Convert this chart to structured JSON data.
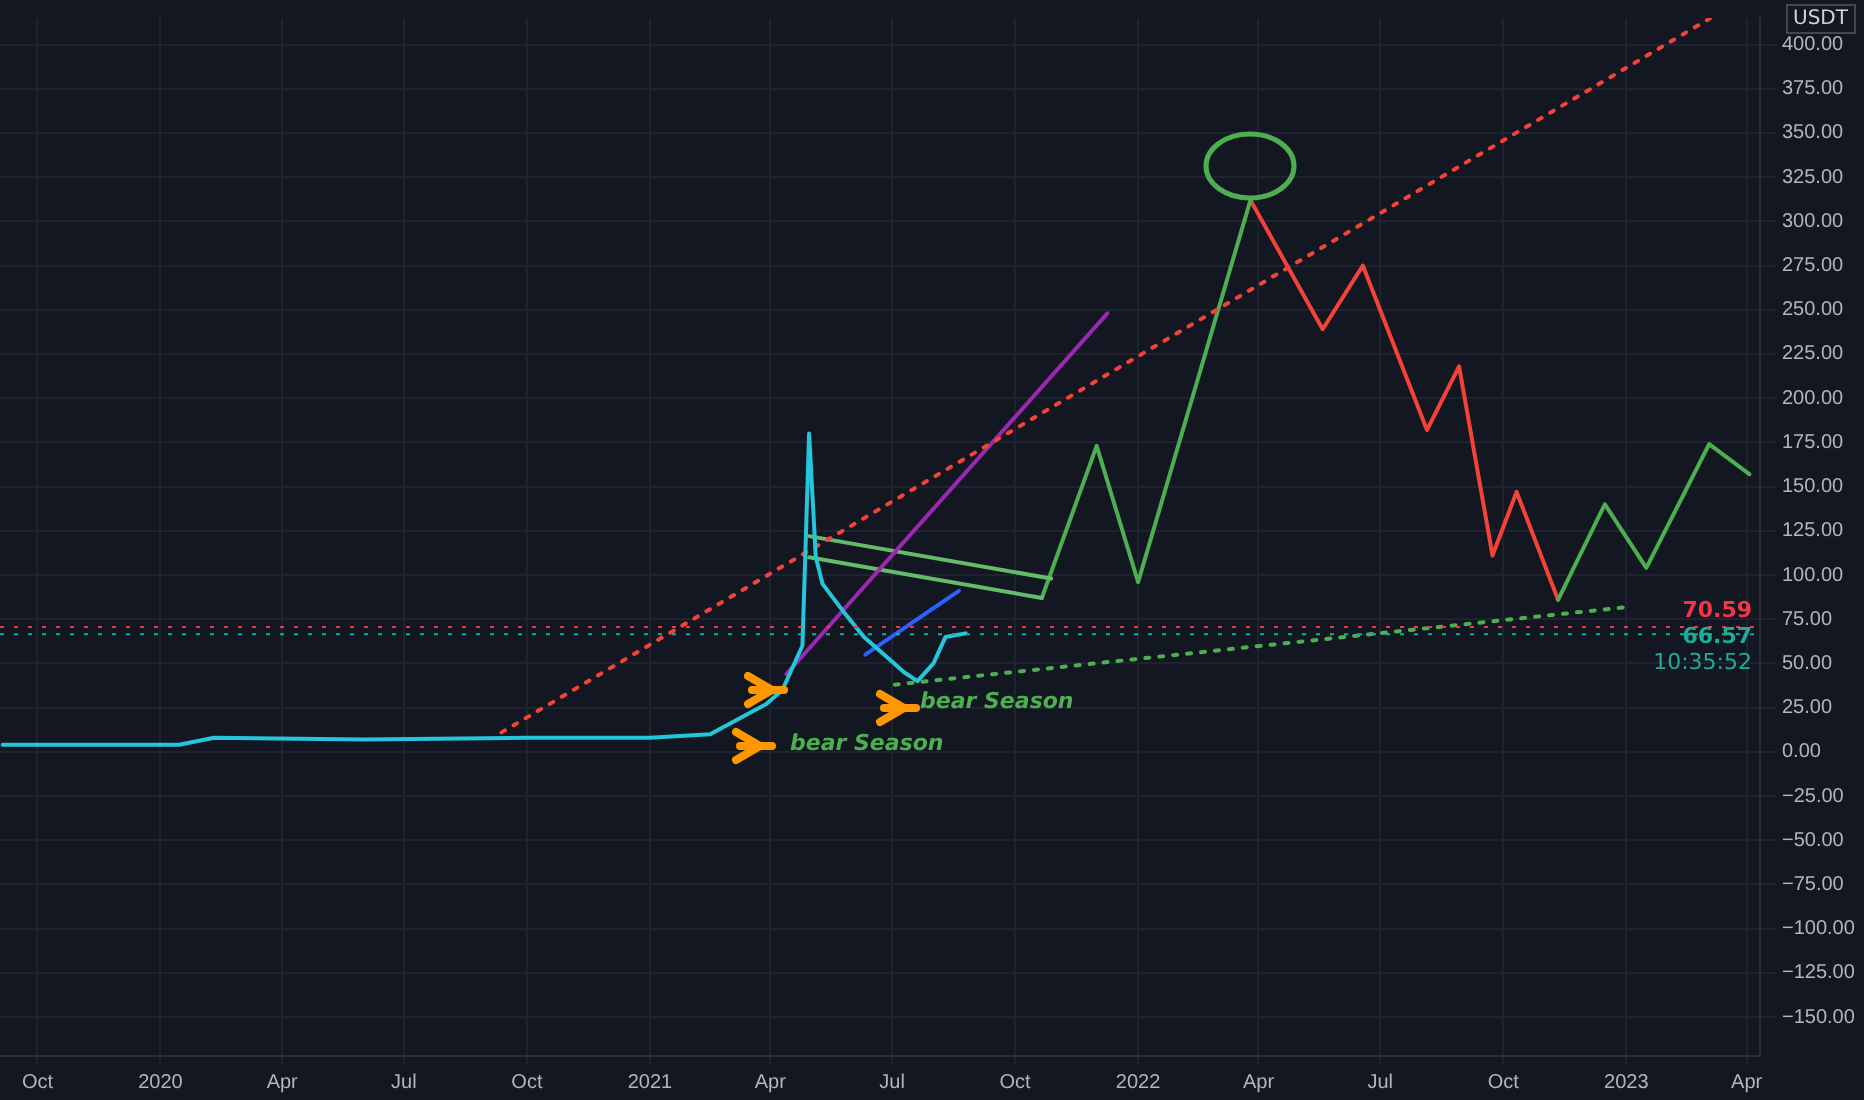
{
  "chart_data": {
    "type": "line",
    "ylabel": "USDT",
    "series": [
      {
        "color": "#26c6da",
        "x": [
          "2019-09-05",
          "2020-01-15",
          "2020-02-10",
          "2020-06-01",
          "2020-10-01",
          "2021-01-01",
          "2021-02-15",
          "2021-03-29",
          "2021-04-10",
          "2021-04-25",
          "2021-04-30",
          "2021-05-05",
          "2021-05-10",
          "2021-05-25",
          "2021-06-10",
          "2021-06-25",
          "2021-07-10",
          "2021-07-20",
          "2021-08-01",
          "2021-08-10",
          "2021-08-25"
        ],
        "values": [
          4,
          4,
          8,
          7,
          8,
          8,
          10,
          27,
          35,
          60,
          180,
          110,
          95,
          80,
          65,
          55,
          45,
          40,
          50,
          65,
          67
        ]
      },
      {
        "color": "#f44336",
        "line_style": "dotted",
        "x": [
          "2020-09-12",
          "2023-03-05"
        ],
        "values": [
          11,
          415
        ]
      },
      {
        "color": "#4caf50",
        "line_style": "dotted",
        "x": [
          "2021-07-03",
          "2023-01-03"
        ],
        "values": [
          38,
          82
        ]
      },
      {
        "color": "#9c27b0",
        "x": [
          "2021-04-13",
          "2021-12-09"
        ],
        "values": [
          44,
          248
        ]
      },
      {
        "color": "#2962ff",
        "x": [
          "2021-06-11",
          "2021-08-20"
        ],
        "values": [
          55,
          91
        ]
      },
      {
        "color": "#66bb6a",
        "x": [
          "2021-04-30",
          "2021-10-28"
        ],
        "values": [
          122,
          98
        ]
      },
      {
        "color": "#66bb6a",
        "x": [
          "2021-04-30",
          "2021-10-21"
        ],
        "values": [
          110,
          87
        ]
      },
      {
        "color": "#4caf50",
        "x": [
          "2021-10-21",
          "2021-12-01",
          "2022-01-01",
          "2022-03-26"
        ],
        "values": [
          87,
          173,
          96,
          312
        ]
      },
      {
        "color": "#4caf50",
        "x": [
          "2022-11-11",
          "2022-12-16",
          "2023-01-16",
          "2023-03-04",
          "2023-04-03"
        ],
        "values": [
          86,
          140,
          104,
          174,
          157
        ]
      },
      {
        "color": "#f44336",
        "x": [
          "2022-03-26",
          "2022-05-19",
          "2022-06-18",
          "2022-08-05",
          "2022-08-29",
          "2022-09-23",
          "2022-10-11",
          "2022-11-11"
        ],
        "values": [
          312,
          239,
          275,
          182,
          218,
          111,
          147,
          86
        ]
      }
    ],
    "xlim": [
      "2019-09-03",
      "2023-04-11"
    ],
    "xticks": [
      {
        "value": "2019-10-01",
        "label": "Oct"
      },
      {
        "value": "2020-01-01",
        "label": "2020"
      },
      {
        "value": "2020-04-01",
        "label": "Apr"
      },
      {
        "value": "2020-07-01",
        "label": "Jul"
      },
      {
        "value": "2020-10-01",
        "label": "Oct"
      },
      {
        "value": "2021-01-01",
        "label": "2021"
      },
      {
        "value": "2021-04-01",
        "label": "Apr"
      },
      {
        "value": "2021-07-01",
        "label": "Jul"
      },
      {
        "value": "2021-10-01",
        "label": "Oct"
      },
      {
        "value": "2022-01-01",
        "label": "2022"
      },
      {
        "value": "2022-04-01",
        "label": "Apr"
      },
      {
        "value": "2022-07-01",
        "label": "Jul"
      },
      {
        "value": "2022-10-01",
        "label": "Oct"
      },
      {
        "value": "2023-01-01",
        "label": "2023"
      },
      {
        "value": "2023-04-01",
        "label": "Apr"
      }
    ],
    "ylim": [
      -172,
      415
    ],
    "yticks": [
      {
        "value": -150,
        "label": "−150.00"
      },
      {
        "value": -125,
        "label": "−125.00"
      },
      {
        "value": -100,
        "label": "−100.00"
      },
      {
        "value": -75,
        "label": "−75.00"
      },
      {
        "value": -50,
        "label": "−50.00"
      },
      {
        "value": -25,
        "label": "−25.00"
      },
      {
        "value": 0,
        "label": "0.00"
      },
      {
        "value": 25,
        "label": "25.00"
      },
      {
        "value": 50,
        "label": "50.00"
      },
      {
        "value": 75,
        "label": "75.00"
      },
      {
        "value": 100,
        "label": "100.00"
      },
      {
        "value": 125,
        "label": "125.00"
      },
      {
        "value": 150,
        "label": "150.00"
      },
      {
        "value": 175,
        "label": "175.00"
      },
      {
        "value": 200,
        "label": "200.00"
      },
      {
        "value": 225,
        "label": "225.00"
      },
      {
        "value": 250,
        "label": "250.00"
      },
      {
        "value": 275,
        "label": "275.00"
      },
      {
        "value": 300,
        "label": "300.00"
      },
      {
        "value": 325,
        "label": "325.00"
      },
      {
        "value": 350,
        "label": "350.00"
      },
      {
        "value": 375,
        "label": "375.00"
      },
      {
        "value": 400,
        "label": "400.00"
      }
    ],
    "ref_lines": [
      {
        "axis": "y",
        "value": 70.59,
        "label": "70.59",
        "color": "#f23645",
        "line_style": "dotted"
      },
      {
        "axis": "y",
        "value": 66.57,
        "label": "66.57",
        "color": "#22ab94",
        "line_style": "dotted"
      }
    ],
    "annotations": [
      "bear Season",
      "bear Season",
      "10:35:52"
    ],
    "grid": true,
    "legend": false,
    "marker": "none",
    "line_style": "solid"
  }
}
